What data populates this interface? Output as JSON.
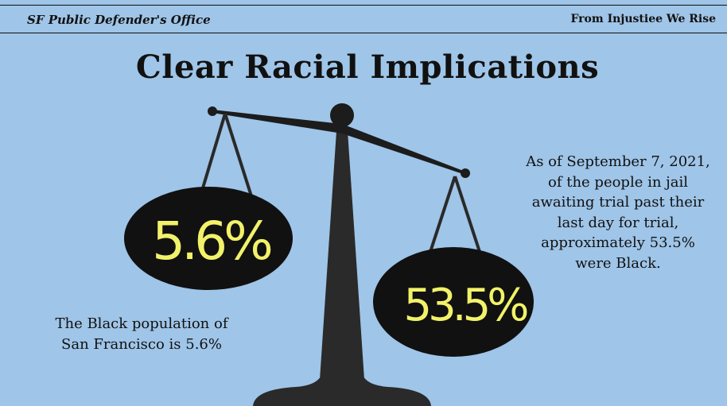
{
  "header": {
    "left_text": "SF Public Defender's Office",
    "right_text": "From Injustiee We Rise"
  },
  "title": "Clear Racial Implications",
  "left_stat": {
    "value": "5.6%",
    "caption_lines": [
      "The Black population of",
      "San Francisco is 5.6%"
    ]
  },
  "right_stat": {
    "value": "53.5%",
    "caption_lines": [
      "As of September 7, 2021,",
      "of the people in jail",
      "awaiting trial past their",
      "last day for trial,",
      "approximately 53.5%",
      "were Black."
    ]
  },
  "colors": {
    "background": "#9fc5e8",
    "scale": "#2a2a2a",
    "ellipse": "#111111",
    "stat_text": "#f2f26a"
  },
  "icon": "scales-of-justice-icon"
}
